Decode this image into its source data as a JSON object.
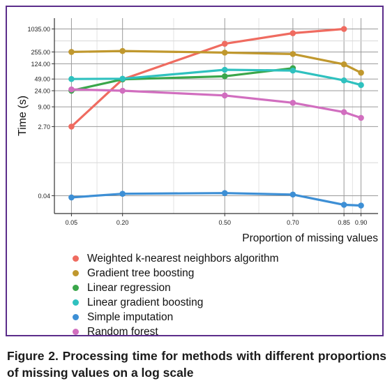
{
  "colors": {
    "frame": "#5b2d8a",
    "caption_text": "#1a1a1a"
  },
  "chart_data": {
    "type": "line",
    "ylabel": "Time (s)",
    "xlabel": "Proportion of missing values",
    "y_scale": "log",
    "grid": true,
    "legend_position": "bottom",
    "x": [
      0.05,
      0.2,
      0.5,
      0.7,
      0.85,
      0.9
    ],
    "x_tick_labels": [
      "0.05",
      "0.20",
      "0.50",
      "0.70",
      "0.85",
      "0.90"
    ],
    "y_ticks": [
      0.04,
      2.7,
      9.0,
      24.0,
      49.0,
      124.0,
      255.0,
      1035.0
    ],
    "y_tick_labels": [
      "0.04",
      "2.70",
      "9.00",
      "24.00",
      "49.00",
      "124.00",
      "255.00",
      "1035.00"
    ],
    "series": [
      {
        "name": "Weighted k-nearest neighbors algorithm",
        "color": "#ef6b60",
        "x": [
          0.05,
          0.2,
          0.5,
          0.7,
          0.85
        ],
        "values": [
          2.7,
          48,
          420,
          800,
          1035
        ]
      },
      {
        "name": "Gradient tree boosting",
        "color": "#c0982e",
        "x": [
          0.05,
          0.2,
          0.5,
          0.7,
          0.85,
          0.9
        ],
        "values": [
          255,
          270,
          245,
          225,
          120,
          72
        ]
      },
      {
        "name": "Linear regression",
        "color": "#3aa64a",
        "x": [
          0.05,
          0.2,
          0.5,
          0.7
        ],
        "values": [
          24,
          48,
          58,
          95
        ]
      },
      {
        "name": "Linear gradient boosting",
        "color": "#2fc1bf",
        "x": [
          0.05,
          0.2,
          0.5,
          0.7,
          0.85,
          0.9
        ],
        "values": [
          49,
          50,
          86,
          82,
          45,
          34
        ]
      },
      {
        "name": "Simple imputation",
        "color": "#3d8fd5",
        "x": [
          0.05,
          0.2,
          0.5,
          0.7,
          0.85,
          0.9
        ],
        "values": [
          0.036,
          0.045,
          0.047,
          0.043,
          0.023,
          0.022
        ]
      },
      {
        "name": "Random forest",
        "color": "#d16ebf",
        "x": [
          0.05,
          0.2,
          0.5,
          0.7,
          0.85,
          0.9
        ],
        "values": [
          26,
          24,
          18,
          11.5,
          6.5,
          4.6
        ]
      }
    ]
  },
  "caption": "Figure 2. Processing time for methods with different proportions of missing values on a log scale"
}
